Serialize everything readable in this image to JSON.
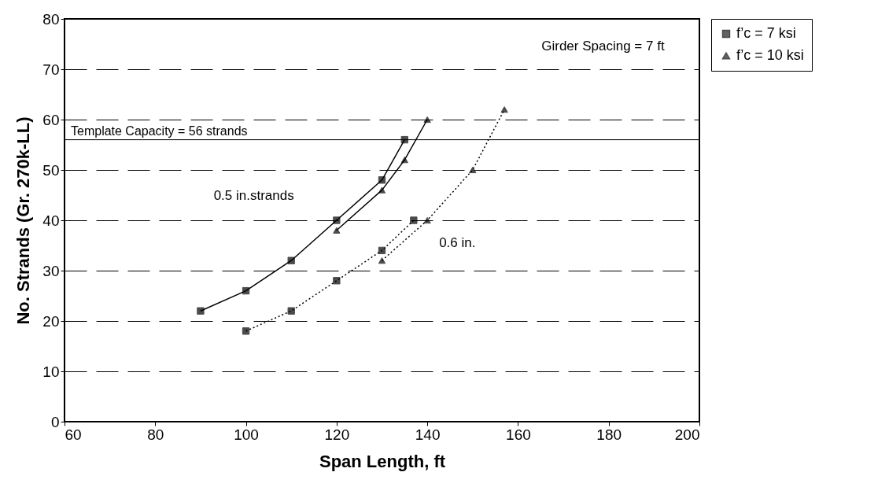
{
  "chart_data": {
    "type": "line",
    "xlabel": "Span Length, ft",
    "ylabel": "No. Strands (Gr. 270k-LL)",
    "xlim": [
      60,
      200
    ],
    "xticks": [
      60,
      80,
      100,
      120,
      140,
      160,
      180,
      200
    ],
    "ylim": [
      0,
      80
    ],
    "yticks": [
      0,
      10,
      20,
      30,
      40,
      50,
      60,
      70,
      80
    ],
    "grid": "y",
    "legend": "right",
    "series": [
      {
        "name": "f’c = 7 ksi",
        "color": "#000000",
        "marker": "square",
        "line_style": "solid",
        "x": [
          90,
          100,
          110,
          120,
          130,
          135
        ],
        "values": [
          22,
          26,
          32,
          40,
          48,
          56
        ]
      },
      {
        "name": "f’c = 10 ksi",
        "color": "#000000",
        "marker": "triangle",
        "line_style": "solid",
        "x": [
          120,
          130,
          135,
          140
        ],
        "values": [
          38,
          46,
          52,
          60
        ]
      },
      {
        "color": "#000000",
        "marker": "square",
        "line_style": "dotted",
        "x": [
          100,
          110,
          120,
          130,
          137
        ],
        "values": [
          18,
          22,
          28,
          34,
          40
        ]
      },
      {
        "color": "#000000",
        "marker": "triangle",
        "line_style": "dotted",
        "x": [
          130,
          140,
          150,
          157
        ],
        "values": [
          32,
          40,
          50,
          62
        ]
      }
    ],
    "ref_lines": [
      {
        "axis": "y",
        "value": 56,
        "label": "Template Capacity = 56 strands",
        "color": "#000000"
      }
    ],
    "annotations": [
      "Girder Spacing = 7 ft",
      "0.5 in.strands",
      "0.6 in."
    ]
  }
}
